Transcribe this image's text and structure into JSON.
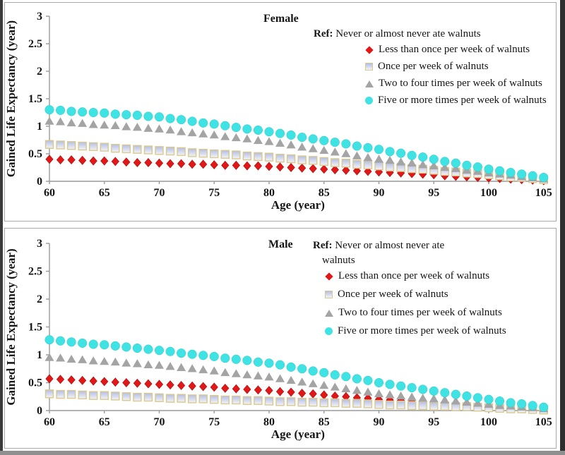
{
  "figure": {
    "background": "#ffffff",
    "panel_border_color": "#ababab",
    "text_color": "#161616",
    "axis_color": "#9a9a9a"
  },
  "chart_data": [
    {
      "type": "scatter",
      "title": "Female",
      "xlabel": "Age (year)",
      "ylabel": "Gained Life Expectancy (year)",
      "xlim": [
        60,
        105
      ],
      "ylim": [
        0,
        3
      ],
      "x_ticks": [
        60,
        65,
        70,
        75,
        80,
        85,
        90,
        95,
        100,
        105
      ],
      "y_ticks": [
        0,
        0.5,
        1,
        1.5,
        2,
        2.5,
        3
      ],
      "grid": false,
      "legend_position": "top-right-inside",
      "ref": {
        "bold": "Ref:",
        "line1": " Never or almost never ate walnuts",
        "line2": ""
      },
      "ages": [
        60,
        61,
        62,
        63,
        64,
        65,
        66,
        67,
        68,
        69,
        70,
        71,
        72,
        73,
        74,
        75,
        76,
        77,
        78,
        79,
        80,
        81,
        82,
        83,
        84,
        85,
        86,
        87,
        88,
        89,
        90,
        91,
        92,
        93,
        94,
        95,
        96,
        97,
        98,
        99,
        100,
        101,
        102,
        103,
        104,
        105
      ],
      "series": [
        {
          "label": "Less than once per week of walnuts",
          "marker": "diamond",
          "color": "#E21717",
          "stroke": "#A50F0F",
          "values": [
            0.4,
            0.39,
            0.39,
            0.38,
            0.37,
            0.37,
            0.36,
            0.35,
            0.34,
            0.34,
            0.33,
            0.32,
            0.32,
            0.31,
            0.31,
            0.3,
            0.29,
            0.29,
            0.28,
            0.28,
            0.27,
            0.26,
            0.25,
            0.24,
            0.23,
            0.22,
            0.21,
            0.2,
            0.19,
            0.18,
            0.17,
            0.16,
            0.15,
            0.14,
            0.13,
            0.12,
            0.1,
            0.09,
            0.08,
            0.07,
            0.06,
            0.05,
            0.04,
            0.03,
            0.02,
            0.01
          ]
        },
        {
          "label": "Once per week of walnuts",
          "marker": "square",
          "color_top": "#B3BEE5",
          "color_bottom": "#F4F4F7",
          "stroke": "#D9C98E",
          "values": [
            0.67,
            0.66,
            0.65,
            0.64,
            0.63,
            0.62,
            0.6,
            0.59,
            0.58,
            0.57,
            0.56,
            0.55,
            0.54,
            0.52,
            0.51,
            0.5,
            0.49,
            0.48,
            0.46,
            0.45,
            0.44,
            0.42,
            0.41,
            0.39,
            0.38,
            0.36,
            0.34,
            0.33,
            0.31,
            0.3,
            0.28,
            0.26,
            0.25,
            0.23,
            0.22,
            0.2,
            0.18,
            0.17,
            0.15,
            0.14,
            0.12,
            0.1,
            0.08,
            0.07,
            0.05,
            0.03
          ]
        },
        {
          "label": "Two to four times per week of walnuts",
          "marker": "triangle",
          "color": "#A4A4A4",
          "stroke": "#A4A4A4",
          "values": [
            1.09,
            1.08,
            1.06,
            1.05,
            1.03,
            1.02,
            1.01,
            0.99,
            0.98,
            0.96,
            0.95,
            0.93,
            0.9,
            0.88,
            0.86,
            0.84,
            0.81,
            0.79,
            0.77,
            0.74,
            0.72,
            0.69,
            0.66,
            0.62,
            0.59,
            0.56,
            0.53,
            0.5,
            0.46,
            0.43,
            0.4,
            0.38,
            0.35,
            0.33,
            0.3,
            0.28,
            0.25,
            0.23,
            0.2,
            0.18,
            0.15,
            0.13,
            0.11,
            0.08,
            0.06,
            0.04
          ]
        },
        {
          "label": "Five or more times per week of walnuts",
          "marker": "circle",
          "color": "#3FE3E3",
          "stroke": "#2BC9CC",
          "values": [
            1.3,
            1.29,
            1.27,
            1.26,
            1.25,
            1.24,
            1.22,
            1.21,
            1.2,
            1.18,
            1.17,
            1.14,
            1.12,
            1.09,
            1.06,
            1.04,
            1.01,
            0.98,
            0.95,
            0.93,
            0.9,
            0.87,
            0.84,
            0.8,
            0.77,
            0.74,
            0.71,
            0.68,
            0.64,
            0.61,
            0.58,
            0.54,
            0.51,
            0.47,
            0.44,
            0.4,
            0.36,
            0.33,
            0.29,
            0.26,
            0.22,
            0.19,
            0.16,
            0.13,
            0.1,
            0.07
          ]
        }
      ]
    },
    {
      "type": "scatter",
      "title": "Male",
      "xlabel": "Age (year)",
      "ylabel": "Gained Life Expectancy (year)",
      "xlim": [
        60,
        105
      ],
      "ylim": [
        0,
        3
      ],
      "x_ticks": [
        60,
        65,
        70,
        75,
        80,
        85,
        90,
        95,
        100,
        105
      ],
      "y_ticks": [
        0,
        0.5,
        1,
        1.5,
        2,
        2.5,
        3
      ],
      "grid": false,
      "legend_position": "top-right-inside",
      "ref": {
        "bold": "Ref:",
        "line1": " Never or almost never ate",
        "line2": "walnuts"
      },
      "ages": [
        60,
        61,
        62,
        63,
        64,
        65,
        66,
        67,
        68,
        69,
        70,
        71,
        72,
        73,
        74,
        75,
        76,
        77,
        78,
        79,
        80,
        81,
        82,
        83,
        84,
        85,
        86,
        87,
        88,
        89,
        90,
        91,
        92,
        93,
        94,
        95,
        96,
        97,
        98,
        99,
        100,
        101,
        102,
        103,
        104,
        105
      ],
      "series": [
        {
          "label": "Less than once per week of walnuts",
          "marker": "diamond",
          "color": "#E21717",
          "stroke": "#A50F0F",
          "values": [
            0.57,
            0.56,
            0.55,
            0.54,
            0.53,
            0.52,
            0.51,
            0.5,
            0.49,
            0.48,
            0.47,
            0.46,
            0.45,
            0.44,
            0.43,
            0.42,
            0.4,
            0.39,
            0.38,
            0.37,
            0.36,
            0.34,
            0.33,
            0.31,
            0.3,
            0.28,
            0.26,
            0.25,
            0.23,
            0.22,
            0.2,
            0.19,
            0.18,
            0.16,
            0.15,
            0.14,
            0.13,
            0.12,
            0.1,
            0.09,
            0.08,
            0.07,
            0.06,
            0.04,
            0.03,
            0.02
          ]
        },
        {
          "label": "Once per week of walnuts",
          "marker": "square",
          "color_top": "#B3BEE5",
          "color_bottom": "#F4F4F7",
          "stroke": "#D9C98E",
          "values": [
            0.3,
            0.29,
            0.29,
            0.28,
            0.27,
            0.27,
            0.26,
            0.25,
            0.24,
            0.24,
            0.23,
            0.22,
            0.22,
            0.21,
            0.21,
            0.2,
            0.19,
            0.19,
            0.18,
            0.18,
            0.17,
            0.16,
            0.16,
            0.15,
            0.15,
            0.14,
            0.14,
            0.13,
            0.13,
            0.12,
            0.11,
            0.1,
            0.1,
            0.09,
            0.09,
            0.08,
            0.08,
            0.07,
            0.07,
            0.06,
            0.05,
            0.04,
            0.03,
            0.03,
            0.02,
            0.01
          ]
        },
        {
          "label": "Two to four times per week of walnuts",
          "marker": "triangle",
          "color": "#A4A4A4",
          "stroke": "#A4A4A4",
          "values": [
            0.95,
            0.94,
            0.92,
            0.91,
            0.89,
            0.88,
            0.87,
            0.85,
            0.84,
            0.82,
            0.81,
            0.79,
            0.77,
            0.75,
            0.73,
            0.71,
            0.68,
            0.66,
            0.64,
            0.62,
            0.6,
            0.57,
            0.54,
            0.51,
            0.48,
            0.45,
            0.42,
            0.39,
            0.36,
            0.33,
            0.3,
            0.28,
            0.26,
            0.24,
            0.22,
            0.21,
            0.19,
            0.17,
            0.15,
            0.13,
            0.11,
            0.09,
            0.08,
            0.06,
            0.05,
            0.03
          ]
        },
        {
          "label": "Five or more times per week of walnuts",
          "marker": "circle",
          "color": "#3FE3E3",
          "stroke": "#2BC9CC",
          "values": [
            1.27,
            1.25,
            1.23,
            1.21,
            1.19,
            1.18,
            1.16,
            1.14,
            1.12,
            1.1,
            1.08,
            1.06,
            1.03,
            1.01,
            0.99,
            0.97,
            0.94,
            0.92,
            0.9,
            0.87,
            0.85,
            0.82,
            0.78,
            0.75,
            0.71,
            0.68,
            0.64,
            0.61,
            0.57,
            0.54,
            0.5,
            0.47,
            0.44,
            0.41,
            0.38,
            0.35,
            0.32,
            0.29,
            0.26,
            0.23,
            0.2,
            0.17,
            0.14,
            0.12,
            0.09,
            0.06
          ]
        }
      ]
    }
  ]
}
